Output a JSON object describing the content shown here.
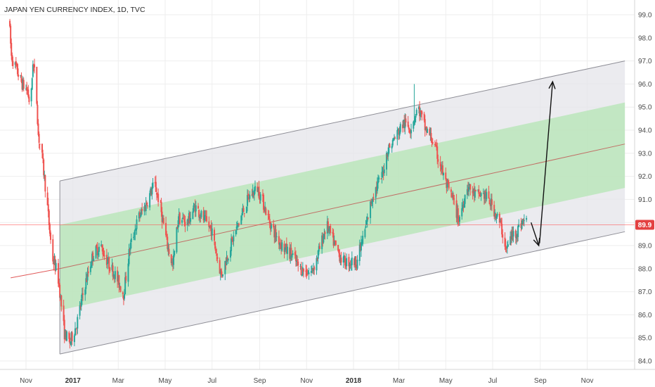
{
  "chart_data": {
    "type": "candlestick",
    "title": "JAPAN YEN CURRENCY INDEX, 1D, TVC",
    "current_price_label": "89.9",
    "current_price": 89.9,
    "ylim": [
      83.6,
      99.4
    ],
    "y_ticks": [
      84.0,
      85.0,
      86.0,
      87.0,
      88.0,
      89.0,
      90.0,
      91.0,
      92.0,
      93.0,
      94.0,
      95.0,
      96.0,
      97.0,
      98.0,
      99.0
    ],
    "y_tick_labels": [
      "84.0",
      "85.0",
      "86.0",
      "87.0",
      "88.0",
      "89.0",
      "",
      "91.0",
      "92.0",
      "93.0",
      "94.0",
      "95.0",
      "96.0",
      "97.0",
      "98.0",
      "99.0"
    ],
    "x_range": [
      "2016-10-10",
      "2018-12-20"
    ],
    "x_ticks": [
      {
        "date": "2016-11-01",
        "label": "Nov",
        "bold": false
      },
      {
        "date": "2017-01-01",
        "label": "2017",
        "bold": true
      },
      {
        "date": "2017-03-01",
        "label": "Mar",
        "bold": false
      },
      {
        "date": "2017-05-01",
        "label": "May",
        "bold": false
      },
      {
        "date": "2017-07-01",
        "label": "Jul",
        "bold": false
      },
      {
        "date": "2017-09-01",
        "label": "Sep",
        "bold": false
      },
      {
        "date": "2017-11-01",
        "label": "Nov",
        "bold": false
      },
      {
        "date": "2018-01-01",
        "label": "2018",
        "bold": true
      },
      {
        "date": "2018-03-01",
        "label": "Mar",
        "bold": false
      },
      {
        "date": "2018-05-01",
        "label": "May",
        "bold": false
      },
      {
        "date": "2018-07-01",
        "label": "Jul",
        "bold": false
      },
      {
        "date": "2018-09-01",
        "label": "Sep",
        "bold": false
      },
      {
        "date": "2018-11-01",
        "label": "Nov",
        "bold": false
      }
    ],
    "price_path": [
      [
        "2016-10-10",
        98.8
      ],
      [
        "2016-10-13",
        97.2
      ],
      [
        "2016-10-20",
        96.6
      ],
      [
        "2016-10-27",
        96.0
      ],
      [
        "2016-11-03",
        95.7
      ],
      [
        "2016-11-07",
        94.9
      ],
      [
        "2016-11-10",
        97.0
      ],
      [
        "2016-11-14",
        96.0
      ],
      [
        "2016-11-17",
        93.8
      ],
      [
        "2016-11-22",
        92.8
      ],
      [
        "2016-11-28",
        91.0
      ],
      [
        "2016-12-05",
        88.5
      ],
      [
        "2016-12-12",
        87.8
      ],
      [
        "2016-12-15",
        87.0
      ],
      [
        "2016-12-21",
        85.2
      ],
      [
        "2016-12-28",
        84.8
      ],
      [
        "2017-01-06",
        85.6
      ],
      [
        "2017-01-16",
        87.2
      ],
      [
        "2017-01-27",
        88.6
      ],
      [
        "2017-02-06",
        89.0
      ],
      [
        "2017-02-15",
        88.3
      ],
      [
        "2017-02-24",
        87.8
      ],
      [
        "2017-03-08",
        86.9
      ],
      [
        "2017-03-16",
        88.9
      ],
      [
        "2017-03-27",
        90.2
      ],
      [
        "2017-04-05",
        90.7
      ],
      [
        "2017-04-17",
        91.7
      ],
      [
        "2017-04-24",
        90.8
      ],
      [
        "2017-05-04",
        89.0
      ],
      [
        "2017-05-11",
        88.1
      ],
      [
        "2017-05-18",
        90.2
      ],
      [
        "2017-05-30",
        90.0
      ],
      [
        "2017-06-09",
        90.7
      ],
      [
        "2017-06-21",
        90.1
      ],
      [
        "2017-06-30",
        89.7
      ],
      [
        "2017-07-07",
        88.6
      ],
      [
        "2017-07-13",
        87.7
      ],
      [
        "2017-07-24",
        88.9
      ],
      [
        "2017-08-07",
        90.2
      ],
      [
        "2017-08-18",
        91.1
      ],
      [
        "2017-08-29",
        91.5
      ],
      [
        "2017-09-05",
        90.9
      ],
      [
        "2017-09-13",
        90.1
      ],
      [
        "2017-09-21",
        89.5
      ],
      [
        "2017-10-02",
        88.9
      ],
      [
        "2017-10-13",
        88.6
      ],
      [
        "2017-10-23",
        88.0
      ],
      [
        "2017-11-06",
        87.8
      ],
      [
        "2017-11-13",
        88.3
      ],
      [
        "2017-11-27",
        89.9
      ],
      [
        "2017-12-08",
        89.0
      ],
      [
        "2017-12-18",
        88.3
      ],
      [
        "2018-01-05",
        88.3
      ],
      [
        "2018-01-15",
        89.5
      ],
      [
        "2018-01-26",
        91.2
      ],
      [
        "2018-02-07",
        92.0
      ],
      [
        "2018-02-14",
        93.1
      ],
      [
        "2018-02-26",
        93.8
      ],
      [
        "2018-03-07",
        94.3
      ],
      [
        "2018-03-16",
        94.1
      ],
      [
        "2018-03-26",
        95.0
      ],
      [
        "2018-04-04",
        94.1
      ],
      [
        "2018-04-13",
        93.6
      ],
      [
        "2018-04-24",
        92.5
      ],
      [
        "2018-05-02",
        91.6
      ],
      [
        "2018-05-10",
        91.0
      ],
      [
        "2018-05-18",
        90.1
      ],
      [
        "2018-05-29",
        91.6
      ],
      [
        "2018-06-08",
        91.2
      ],
      [
        "2018-06-20",
        91.2
      ],
      [
        "2018-06-29",
        90.8
      ],
      [
        "2018-07-06",
        90.3
      ],
      [
        "2018-07-12",
        89.8
      ],
      [
        "2018-07-19",
        88.8
      ],
      [
        "2018-07-25",
        89.4
      ],
      [
        "2018-08-01",
        89.6
      ],
      [
        "2018-08-10",
        90.1
      ],
      [
        "2018-08-14",
        90.0
      ]
    ],
    "spikes": [
      [
        "2017-09-04",
        93.1
      ],
      [
        "2018-03-21",
        96.0
      ]
    ],
    "channel": {
      "start_date": "2016-12-15",
      "end_date": "2018-12-20",
      "upper": [
        91.8,
        97.0
      ],
      "inner_upper": [
        89.9,
        95.2
      ],
      "median": [
        88.0,
        93.4
      ],
      "inner_lower": [
        86.2,
        91.5
      ],
      "lower": [
        84.3,
        89.6
      ]
    },
    "trend_line": {
      "start_date": "2016-10-12",
      "end_date": "2016-12-15",
      "start_value": 87.6,
      "end_value": 88.0
    },
    "arrows": [
      {
        "from": [
          "2018-08-20",
          90.0
        ],
        "to": [
          "2018-08-30",
          89.0
        ]
      },
      {
        "from": [
          "2018-08-31",
          89.1
        ],
        "to": [
          "2018-09-17",
          96.1
        ]
      }
    ],
    "colors": {
      "up": "#26a69a",
      "down": "#ef5350",
      "channel_outer_fill": "#e4e4ea",
      "channel_inner_fill": "#b8e6b8",
      "channel_edge": "#8e8e96",
      "median_line": "#c0504d",
      "trend_line": "#e05a5a",
      "price_line": "#ff4d4d",
      "price_tag": "#e34141",
      "grid": "#eeeeee",
      "axis_text": "#4a4a4a"
    }
  }
}
